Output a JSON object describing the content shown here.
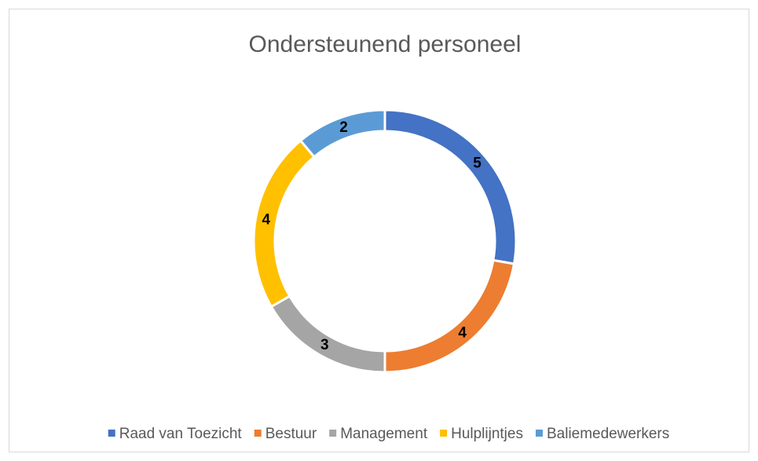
{
  "chart_data": {
    "type": "donut",
    "title": "Ondersteunend personeel",
    "categories": [
      "Raad van Toezicht",
      "Bestuur",
      "Management",
      "Hulplijntjes",
      "Baliemedewerkers"
    ],
    "values": [
      5,
      4,
      3,
      4,
      2
    ],
    "colors": [
      "#4472c4",
      "#ed7d31",
      "#a5a5a5",
      "#ffc000",
      "#5b9bd5"
    ],
    "legend": "bottom"
  }
}
